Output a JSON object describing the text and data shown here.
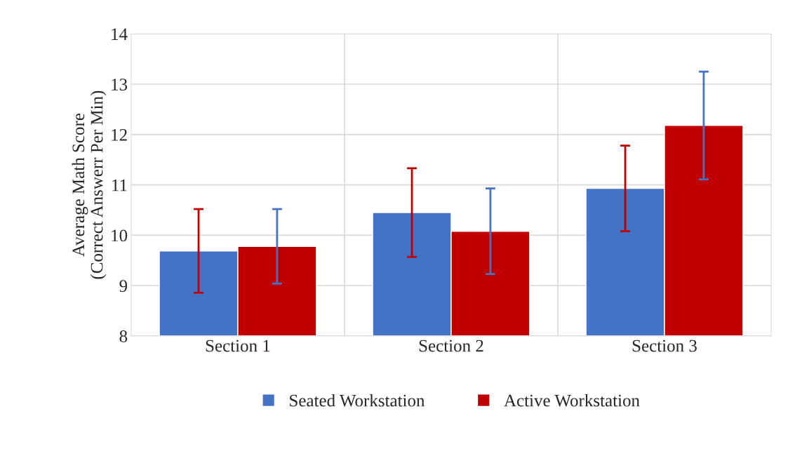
{
  "chart_data": {
    "type": "bar",
    "ylabel": "Average Math Score\n(Correct Answerr Per Min)",
    "categories": [
      "Section 1",
      "Section 2",
      "Section 3"
    ],
    "series": [
      {
        "name": "Seated Workstation",
        "color": "#4472c4",
        "values": [
          9.69,
          10.45,
          10.93
        ],
        "errors": [
          0.83,
          0.88,
          0.85
        ]
      },
      {
        "name": "Active Workstation",
        "color": "#c00000",
        "values": [
          9.78,
          10.08,
          12.18
        ],
        "errors": [
          0.74,
          0.85,
          1.07
        ]
      }
    ],
    "ylim": [
      8,
      14
    ],
    "yticks": [
      8,
      9,
      10,
      11,
      12,
      13,
      14
    ],
    "grid": true,
    "legend": "bottom"
  }
}
